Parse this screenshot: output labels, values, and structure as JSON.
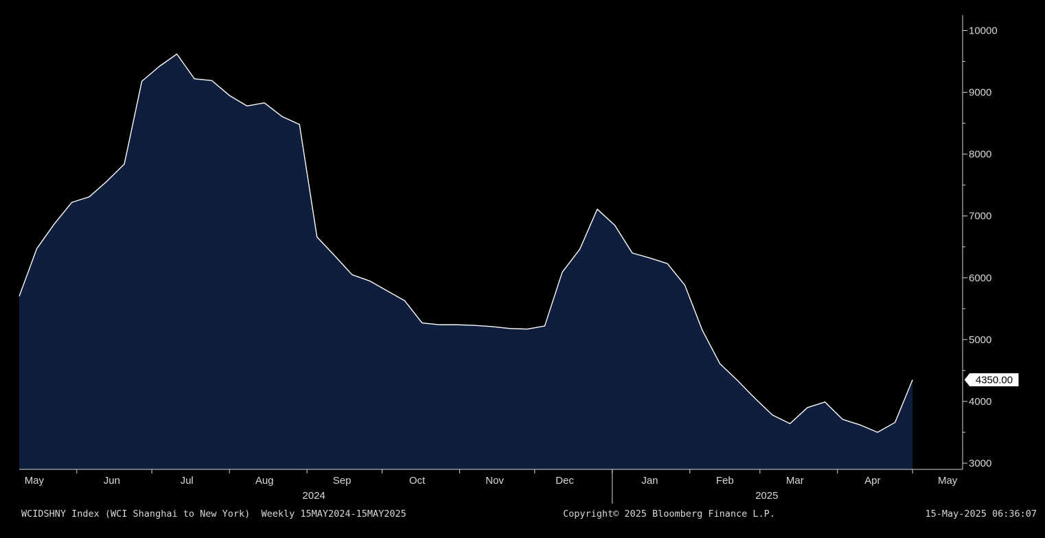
{
  "chart_data": {
    "type": "area",
    "title": "",
    "xlabel": "",
    "ylabel": "",
    "ylim": [
      2900,
      10250
    ],
    "y_ticks": [
      {
        "value": 3000,
        "label": "3000"
      },
      {
        "value": 4000,
        "label": "4000"
      },
      {
        "value": 5000,
        "label": "5000"
      },
      {
        "value": 6000,
        "label": "6000"
      },
      {
        "value": 7000,
        "label": "7000"
      },
      {
        "value": 8000,
        "label": "8000"
      },
      {
        "value": 9000,
        "label": "9000"
      },
      {
        "value": 10000,
        "label": "10000"
      }
    ],
    "x_start": "2024-05-09",
    "x_end": "2025-05-21",
    "month_labels": [
      {
        "label": "May",
        "date": "2024-05-15"
      },
      {
        "label": "Jun",
        "date": "2024-06-15"
      },
      {
        "label": "Jul",
        "date": "2024-07-15"
      },
      {
        "label": "Aug",
        "date": "2024-08-15"
      },
      {
        "label": "Sep",
        "date": "2024-09-15"
      },
      {
        "label": "Oct",
        "date": "2024-10-15"
      },
      {
        "label": "Nov",
        "date": "2024-11-15"
      },
      {
        "label": "Dec",
        "date": "2024-12-13"
      },
      {
        "label": "Jan",
        "date": "2025-01-16"
      },
      {
        "label": "Feb",
        "date": "2025-02-15"
      },
      {
        "label": "Mar",
        "date": "2025-03-15"
      },
      {
        "label": "Apr",
        "date": "2025-04-15"
      },
      {
        "label": "May",
        "date": "2025-05-15"
      }
    ],
    "month_ticks": [
      "2024-06-01",
      "2024-07-01",
      "2024-08-01",
      "2024-09-01",
      "2024-10-01",
      "2024-11-01",
      "2024-12-01",
      "2025-01-01",
      "2025-02-01",
      "2025-03-01",
      "2025-04-01",
      "2025-05-01"
    ],
    "year_labels": [
      {
        "label": "2024",
        "date": "2024-09-01"
      },
      {
        "label": "2025",
        "date": "2025-03-01"
      }
    ],
    "series": [
      {
        "name": "WCIDSHNY Index (WCI Shanghai to New York)",
        "color": "#ffffff",
        "fill": "#0e1e3c",
        "points": [
          [
            "2024-05-09",
            5700
          ],
          [
            "2024-05-16",
            6470
          ],
          [
            "2024-05-23",
            6870
          ],
          [
            "2024-05-30",
            7220
          ],
          [
            "2024-06-06",
            7310
          ],
          [
            "2024-06-13",
            7560
          ],
          [
            "2024-06-20",
            7840
          ],
          [
            "2024-06-27",
            9180
          ],
          [
            "2024-07-04",
            9420
          ],
          [
            "2024-07-11",
            9620
          ],
          [
            "2024-07-18",
            9220
          ],
          [
            "2024-07-25",
            9190
          ],
          [
            "2024-08-01",
            8950
          ],
          [
            "2024-08-08",
            8780
          ],
          [
            "2024-08-15",
            8830
          ],
          [
            "2024-08-22",
            8610
          ],
          [
            "2024-08-29",
            8480
          ],
          [
            "2024-09-05",
            6660
          ],
          [
            "2024-09-12",
            6360
          ],
          [
            "2024-09-19",
            6050
          ],
          [
            "2024-09-26",
            5950
          ],
          [
            "2024-10-03",
            5790
          ],
          [
            "2024-10-10",
            5630
          ],
          [
            "2024-10-17",
            5270
          ],
          [
            "2024-10-24",
            5240
          ],
          [
            "2024-10-31",
            5240
          ],
          [
            "2024-11-07",
            5230
          ],
          [
            "2024-11-14",
            5210
          ],
          [
            "2024-11-21",
            5180
          ],
          [
            "2024-11-28",
            5170
          ],
          [
            "2024-12-05",
            5220
          ],
          [
            "2024-12-12",
            6090
          ],
          [
            "2024-12-19",
            6460
          ],
          [
            "2024-12-26",
            7110
          ],
          [
            "2025-01-02",
            6850
          ],
          [
            "2025-01-09",
            6400
          ],
          [
            "2025-01-16",
            6320
          ],
          [
            "2025-01-23",
            6230
          ],
          [
            "2025-01-30",
            5880
          ],
          [
            "2025-02-06",
            5150
          ],
          [
            "2025-02-13",
            4610
          ],
          [
            "2025-02-20",
            4340
          ],
          [
            "2025-02-27",
            4050
          ],
          [
            "2025-03-06",
            3780
          ],
          [
            "2025-03-13",
            3640
          ],
          [
            "2025-03-20",
            3900
          ],
          [
            "2025-03-27",
            3990
          ],
          [
            "2025-04-03",
            3710
          ],
          [
            "2025-04-10",
            3620
          ],
          [
            "2025-04-17",
            3500
          ],
          [
            "2025-04-24",
            3660
          ],
          [
            "2025-05-01",
            4350
          ]
        ]
      }
    ],
    "last_value_label": "4350.00",
    "grid": false
  },
  "footer": {
    "left": "WCIDSHNY Index (WCI Shanghai to New York)  Weekly 15MAY2024-15MAY2025",
    "center": "Copyright© 2025 Bloomberg Finance L.P.",
    "right": "15-May-2025 06:36:07"
  },
  "colors": {
    "background": "#000000",
    "area_fill": "#0e1e3c",
    "line": "#ffffff",
    "axis": "#d8d8d8",
    "label_box": "#ffffff"
  }
}
